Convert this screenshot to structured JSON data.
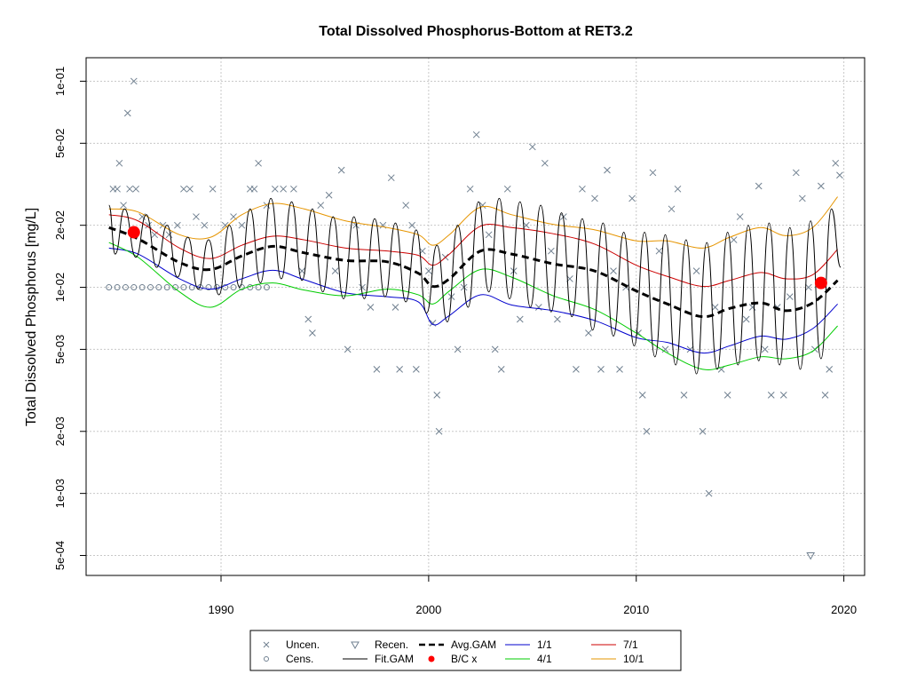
{
  "chart_data": {
    "type": "line",
    "title": "Total Dissolved Phosphorus-Bottom at RET3.2",
    "xlabel": "",
    "ylabel": "Total Dissolved Phosphorus [mg/L]",
    "y_scale": "log",
    "xlim": [
      1983.5,
      2021
    ],
    "ylim": [
      0.0004,
      0.13
    ],
    "x_ticks": [
      1990,
      2000,
      2010,
      2020
    ],
    "y_ticks": [
      0.1,
      0.05,
      0.02,
      0.01,
      0.005,
      0.002,
      0.001,
      0.0005
    ],
    "y_tick_labels": [
      "1e-01",
      "5e-02",
      "2e-02",
      "1e-02",
      "5e-03",
      "2e-03",
      "1e-03",
      "5e-04"
    ],
    "grid": true,
    "legend_placement": "bottom",
    "legend": [
      {
        "label": "Uncen.",
        "symbol": "x",
        "color": "#708090"
      },
      {
        "label": "Cens.",
        "symbol": "circle",
        "color": "#708090"
      },
      {
        "label": "Recen.",
        "symbol": "triangle-down",
        "color": "#708090"
      },
      {
        "label": "Fit.GAM",
        "symbol": "line",
        "color": "#000000"
      },
      {
        "label": "Avg.GAM",
        "symbol": "dashed-line",
        "color": "#000000"
      },
      {
        "label": "B/C x",
        "symbol": "dot",
        "color": "#ff0000"
      },
      {
        "label": "1/1",
        "symbol": "line",
        "color": "#0000cd"
      },
      {
        "label": "4/1",
        "symbol": "line",
        "color": "#00cc00"
      },
      {
        "label": "7/1",
        "symbol": "line",
        "color": "#cc0000"
      },
      {
        "label": "10/1",
        "symbol": "line",
        "color": "#e69500"
      }
    ],
    "series": [
      {
        "name": "Avg.GAM",
        "color": "#000000",
        "dash": true,
        "x": [
          1984.6,
          1986,
          1988,
          1989.5,
          1991,
          1992.5,
          1994,
          1996,
          1998,
          1999.5,
          2000.2,
          2001,
          2002.5,
          2004,
          2006,
          2008,
          2010,
          2011.5,
          2013.2,
          2014.5,
          2016,
          2017.2,
          2018.5,
          2019.7
        ],
        "y": [
          0.0195,
          0.0172,
          0.0132,
          0.0122,
          0.0142,
          0.0158,
          0.0147,
          0.0135,
          0.0133,
          0.0117,
          0.0101,
          0.011,
          0.015,
          0.0145,
          0.013,
          0.012,
          0.0096,
          0.0083,
          0.0072,
          0.0079,
          0.0084,
          0.0077,
          0.0084,
          0.0108
        ]
      },
      {
        "name": "1/1",
        "color": "#0000cd",
        "x": [
          1984.6,
          1986,
          1988,
          1989.5,
          1991,
          1992.5,
          1994,
          1996,
          1998,
          1999.5,
          2000.2,
          2001,
          2002.5,
          2004,
          2006,
          2008,
          2010,
          2011.5,
          2013.2,
          2014.5,
          2016,
          2017.2,
          2018.5,
          2019.7
        ],
        "y": [
          0.0155,
          0.0145,
          0.011,
          0.0098,
          0.011,
          0.0121,
          0.0109,
          0.0094,
          0.009,
          0.0085,
          0.0066,
          0.0073,
          0.0092,
          0.0082,
          0.0077,
          0.0069,
          0.0057,
          0.0054,
          0.0048,
          0.0052,
          0.0058,
          0.0056,
          0.0063,
          0.0083
        ]
      },
      {
        "name": "4/1",
        "color": "#00cc00",
        "x": [
          1984.6,
          1986,
          1988,
          1989.5,
          1991,
          1992.5,
          1994,
          1996,
          1998,
          1999.5,
          2000.2,
          2001,
          2002.5,
          2004,
          2006,
          2008,
          2010,
          2011.5,
          2013.2,
          2014.5,
          2016,
          2017.2,
          2018.5,
          2019.7
        ],
        "y": [
          0.0165,
          0.014,
          0.0095,
          0.008,
          0.0098,
          0.0105,
          0.0097,
          0.0091,
          0.0098,
          0.0092,
          0.0083,
          0.0096,
          0.0122,
          0.0112,
          0.0091,
          0.0078,
          0.006,
          0.0048,
          0.004,
          0.0042,
          0.0046,
          0.0045,
          0.0049,
          0.0065
        ]
      },
      {
        "name": "7/1",
        "color": "#cc0000",
        "x": [
          1984.6,
          1986,
          1988,
          1989.5,
          1991,
          1992.5,
          1994,
          1996,
          1998,
          1999.5,
          2000.2,
          2001,
          2002.5,
          2004,
          2006,
          2008,
          2010,
          2011.5,
          2013.2,
          2014.5,
          2016,
          2017.2,
          2018.5,
          2019.7
        ],
        "y": [
          0.0225,
          0.021,
          0.0155,
          0.0138,
          0.016,
          0.0177,
          0.017,
          0.0155,
          0.015,
          0.0143,
          0.0128,
          0.0145,
          0.0198,
          0.0195,
          0.0182,
          0.0162,
          0.0128,
          0.0113,
          0.0101,
          0.0108,
          0.0118,
          0.011,
          0.0115,
          0.0153
        ]
      },
      {
        "name": "10/1",
        "color": "#e69500",
        "x": [
          1984.6,
          1986,
          1988,
          1989.5,
          1991,
          1992.5,
          1994,
          1996,
          1998,
          1999.5,
          2000.2,
          2001,
          2002.5,
          2004,
          2006,
          2008,
          2010,
          2011.5,
          2013.2,
          2014.5,
          2016,
          2017.2,
          2018.5,
          2019.7
        ],
        "y": [
          0.024,
          0.0232,
          0.018,
          0.0175,
          0.0225,
          0.0255,
          0.024,
          0.021,
          0.0195,
          0.018,
          0.016,
          0.018,
          0.0245,
          0.0225,
          0.0202,
          0.019,
          0.0168,
          0.0168,
          0.0155,
          0.0175,
          0.0195,
          0.0178,
          0.0195,
          0.0275
        ]
      },
      {
        "name": "Fit.GAM",
        "color": "#000000",
        "x": [
          1984.6,
          1984.9,
          1985.35,
          1985.9,
          1986.4,
          1986.9,
          1987.4,
          1987.9,
          1988.4,
          1988.9,
          1989.4,
          1989.9,
          1990.4,
          1990.9,
          1991.4,
          1991.9,
          1992.4,
          1992.9,
          1993.4,
          1993.9,
          1994.4,
          1994.9,
          1995.4,
          1995.9,
          1996.4,
          1996.9,
          1997.4,
          1997.9,
          1998.4,
          1998.9,
          1999.4,
          1999.9,
          2000.4,
          2000.9,
          2001.4,
          2001.9,
          2002.4,
          2002.9,
          2003.4,
          2003.9,
          2004.4,
          2004.9,
          2005.4,
          2005.9,
          2006.4,
          2006.9,
          2007.4,
          2007.9,
          2008.4,
          2008.9,
          2009.4,
          2009.9,
          2010.4,
          2010.9,
          2011.4,
          2011.9,
          2012.4,
          2012.9,
          2013.4,
          2013.9,
          2014.4,
          2014.9,
          2015.4,
          2015.9,
          2016.4,
          2016.9,
          2017.4,
          2017.9,
          2018.4,
          2018.9,
          2019.4,
          2019.85
        ],
        "y": [
          0.025,
          0.0145,
          0.024,
          0.014,
          0.0225,
          0.0125,
          0.02,
          0.0112,
          0.0175,
          0.0098,
          0.017,
          0.0092,
          0.02,
          0.01,
          0.024,
          0.0105,
          0.027,
          0.011,
          0.026,
          0.0108,
          0.024,
          0.0095,
          0.022,
          0.0088,
          0.022,
          0.0088,
          0.0215,
          0.009,
          0.0205,
          0.0085,
          0.019,
          0.0075,
          0.016,
          0.0068,
          0.02,
          0.008,
          0.026,
          0.0095,
          0.027,
          0.0088,
          0.026,
          0.008,
          0.025,
          0.0076,
          0.023,
          0.0072,
          0.0215,
          0.0062,
          0.0205,
          0.0058,
          0.0185,
          0.0052,
          0.0185,
          0.0046,
          0.018,
          0.0042,
          0.017,
          0.0038,
          0.0165,
          0.004,
          0.0185,
          0.0042,
          0.02,
          0.0044,
          0.0205,
          0.0042,
          0.0195,
          0.004,
          0.021,
          0.0045,
          0.024,
          0.0125
        ]
      }
    ],
    "points_uncensored": [
      [
        1984.8,
        0.03
      ],
      [
        1985.0,
        0.03
      ],
      [
        1985.1,
        0.04
      ],
      [
        1985.3,
        0.025
      ],
      [
        1985.5,
        0.07
      ],
      [
        1985.6,
        0.03
      ],
      [
        1985.8,
        0.1
      ],
      [
        1985.9,
        0.03
      ],
      [
        1986.2,
        0.022
      ],
      [
        1986.5,
        0.02
      ],
      [
        1986.8,
        0.018
      ],
      [
        1987.2,
        0.02
      ],
      [
        1987.5,
        0.018
      ],
      [
        1987.9,
        0.02
      ],
      [
        1988.2,
        0.03
      ],
      [
        1988.5,
        0.03
      ],
      [
        1988.8,
        0.022
      ],
      [
        1989.2,
        0.02
      ],
      [
        1989.6,
        0.03
      ],
      [
        1990.2,
        0.02
      ],
      [
        1990.6,
        0.022
      ],
      [
        1991.0,
        0.02
      ],
      [
        1991.4,
        0.03
      ],
      [
        1991.6,
        0.03
      ],
      [
        1991.8,
        0.04
      ],
      [
        1992.2,
        0.025
      ],
      [
        1992.6,
        0.03
      ],
      [
        1993.0,
        0.03
      ],
      [
        1993.5,
        0.03
      ],
      [
        1993.9,
        0.012
      ],
      [
        1994.2,
        0.007
      ],
      [
        1994.4,
        0.006
      ],
      [
        1994.8,
        0.025
      ],
      [
        1995.2,
        0.028
      ],
      [
        1995.5,
        0.012
      ],
      [
        1995.8,
        0.037
      ],
      [
        1996.1,
        0.005
      ],
      [
        1996.5,
        0.02
      ],
      [
        1996.8,
        0.01
      ],
      [
        1997.2,
        0.008
      ],
      [
        1997.5,
        0.004
      ],
      [
        1997.8,
        0.02
      ],
      [
        1998.2,
        0.034
      ],
      [
        1998.4,
        0.008
      ],
      [
        1998.6,
        0.004
      ],
      [
        1998.9,
        0.025
      ],
      [
        1999.2,
        0.02
      ],
      [
        1999.4,
        0.004
      ],
      [
        1999.7,
        0.015
      ],
      [
        2000.0,
        0.012
      ],
      [
        2000.2,
        0.0067
      ],
      [
        2000.4,
        0.003
      ],
      [
        2000.5,
        0.002
      ],
      [
        2000.8,
        0.014
      ],
      [
        2001.1,
        0.009
      ],
      [
        2001.4,
        0.005
      ],
      [
        2001.7,
        0.01
      ],
      [
        2002.0,
        0.03
      ],
      [
        2002.3,
        0.055
      ],
      [
        2002.6,
        0.025
      ],
      [
        2002.9,
        0.018
      ],
      [
        2003.2,
        0.005
      ],
      [
        2003.5,
        0.004
      ],
      [
        2003.8,
        0.03
      ],
      [
        2004.1,
        0.012
      ],
      [
        2004.4,
        0.007
      ],
      [
        2004.7,
        0.02
      ],
      [
        2005.0,
        0.048
      ],
      [
        2005.3,
        0.008
      ],
      [
        2005.6,
        0.04
      ],
      [
        2005.9,
        0.015
      ],
      [
        2006.2,
        0.007
      ],
      [
        2006.5,
        0.022
      ],
      [
        2006.8,
        0.011
      ],
      [
        2007.1,
        0.004
      ],
      [
        2007.4,
        0.03
      ],
      [
        2007.7,
        0.006
      ],
      [
        2008.0,
        0.027
      ],
      [
        2008.3,
        0.004
      ],
      [
        2008.6,
        0.037
      ],
      [
        2008.9,
        0.012
      ],
      [
        2009.2,
        0.004
      ],
      [
        2009.5,
        0.01
      ],
      [
        2009.8,
        0.027
      ],
      [
        2010.1,
        0.006
      ],
      [
        2010.3,
        0.003
      ],
      [
        2010.5,
        0.002
      ],
      [
        2010.8,
        0.036
      ],
      [
        2011.1,
        0.015
      ],
      [
        2011.4,
        0.005
      ],
      [
        2011.7,
        0.024
      ],
      [
        2012.0,
        0.03
      ],
      [
        2012.3,
        0.003
      ],
      [
        2012.6,
        0.005
      ],
      [
        2012.9,
        0.012
      ],
      [
        2013.2,
        0.002
      ],
      [
        2013.5,
        0.001
      ],
      [
        2013.8,
        0.008
      ],
      [
        2014.1,
        0.004
      ],
      [
        2014.4,
        0.003
      ],
      [
        2014.7,
        0.017
      ],
      [
        2015.0,
        0.022
      ],
      [
        2015.3,
        0.007
      ],
      [
        2015.6,
        0.008
      ],
      [
        2015.9,
        0.031
      ],
      [
        2016.2,
        0.005
      ],
      [
        2016.5,
        0.003
      ],
      [
        2016.8,
        0.008
      ],
      [
        2017.1,
        0.003
      ],
      [
        2017.4,
        0.009
      ],
      [
        2017.7,
        0.036
      ],
      [
        2018.0,
        0.027
      ],
      [
        2018.3,
        0.01
      ],
      [
        2018.6,
        0.005
      ],
      [
        2018.9,
        0.031
      ],
      [
        2019.1,
        0.003
      ],
      [
        2019.3,
        0.004
      ],
      [
        2019.6,
        0.04
      ],
      [
        2019.8,
        0.035
      ]
    ],
    "points_censored": [
      [
        1984.6,
        0.01
      ],
      [
        1985.0,
        0.01
      ],
      [
        1985.4,
        0.01
      ],
      [
        1985.8,
        0.01
      ],
      [
        1986.2,
        0.01
      ],
      [
        1986.6,
        0.01
      ],
      [
        1987.0,
        0.01
      ],
      [
        1987.4,
        0.01
      ],
      [
        1987.8,
        0.01
      ],
      [
        1988.2,
        0.01
      ],
      [
        1988.6,
        0.01
      ],
      [
        1989.0,
        0.01
      ],
      [
        1989.4,
        0.01
      ],
      [
        1989.8,
        0.01
      ],
      [
        1990.2,
        0.01
      ],
      [
        1990.6,
        0.01
      ],
      [
        1991.0,
        0.01
      ],
      [
        1991.4,
        0.01
      ],
      [
        1991.8,
        0.01
      ],
      [
        1992.2,
        0.01
      ]
    ],
    "points_recensored": [
      [
        2018.4,
        0.0005
      ]
    ],
    "bc_points": [
      [
        1985.8,
        0.0185
      ],
      [
        2018.9,
        0.0105
      ]
    ]
  }
}
